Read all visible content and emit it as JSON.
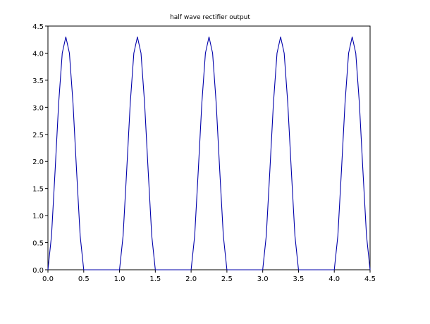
{
  "chart_data": {
    "type": "line",
    "title": "half wave rectifier output",
    "xlabel": "",
    "ylabel": "",
    "xlim": [
      0.0,
      4.5
    ],
    "ylim": [
      0.0,
      4.5
    ],
    "x_ticks": [
      "0.0",
      "0.5",
      "1.0",
      "1.5",
      "2.0",
      "2.5",
      "3.0",
      "3.5",
      "4.0",
      "4.5"
    ],
    "y_ticks": [
      "0.0",
      "0.5",
      "1.0",
      "1.5",
      "2.0",
      "2.5",
      "3.0",
      "3.5",
      "4.0",
      "4.5"
    ],
    "grid": false,
    "line_color": "#0000aa",
    "series": [
      {
        "x": [
          0.0,
          0.05,
          0.1,
          0.15,
          0.2,
          0.25,
          0.3,
          0.35,
          0.4,
          0.45,
          0.5,
          0.55,
          1.0,
          1.05,
          1.1,
          1.15,
          1.2,
          1.25,
          1.3,
          1.35,
          1.4,
          1.45,
          1.5,
          1.55,
          2.0,
          2.05,
          2.1,
          2.15,
          2.2,
          2.25,
          2.3,
          2.35,
          2.4,
          2.45,
          2.5,
          2.55,
          3.0,
          3.05,
          3.1,
          3.15,
          3.2,
          3.25,
          3.3,
          3.35,
          3.4,
          3.45,
          3.5,
          3.55,
          4.0,
          4.05,
          4.1,
          4.15,
          4.2,
          4.25,
          4.3,
          4.35,
          4.4,
          4.45,
          4.5
        ],
        "values": [
          0.0,
          0.63,
          1.83,
          3.08,
          4.0,
          4.3,
          4.0,
          3.08,
          1.83,
          0.63,
          0.0,
          0.0,
          0.0,
          0.63,
          1.83,
          3.08,
          4.0,
          4.3,
          4.0,
          3.08,
          1.83,
          0.63,
          0.0,
          0.0,
          0.0,
          0.63,
          1.83,
          3.08,
          4.0,
          4.3,
          4.0,
          3.08,
          1.83,
          0.63,
          0.0,
          0.0,
          0.0,
          0.63,
          1.83,
          3.08,
          4.0,
          4.3,
          4.0,
          3.08,
          1.83,
          0.63,
          0.0,
          0.0,
          0.0,
          0.63,
          1.83,
          3.08,
          4.0,
          4.3,
          4.0,
          3.08,
          1.83,
          0.63,
          0.0
        ]
      }
    ]
  }
}
